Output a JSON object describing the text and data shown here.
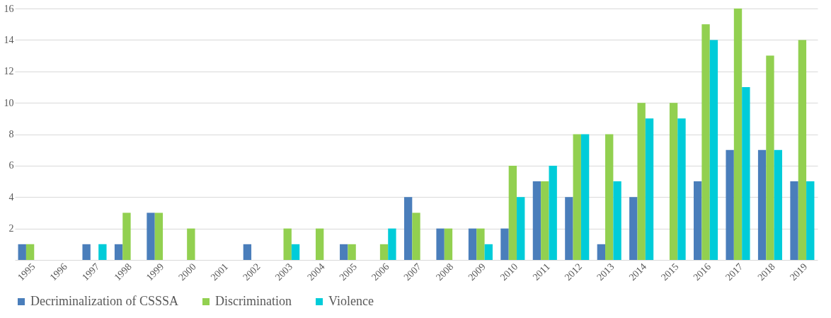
{
  "chart_data": {
    "type": "bar",
    "categories": [
      "1995",
      "1996",
      "1997",
      "1998",
      "1999",
      "2000",
      "2001",
      "2002",
      "2003",
      "2004",
      "2005",
      "2006",
      "2007",
      "2008",
      "2009",
      "2010",
      "2011",
      "2012",
      "2013",
      "2014",
      "2015",
      "2016",
      "2017",
      "2018",
      "2019"
    ],
    "series": [
      {
        "name": "Decriminalization of CSSSA",
        "color": "#4a7ebb",
        "values": [
          1,
          0,
          1,
          1,
          3,
          0,
          0,
          1,
          0,
          0,
          1,
          0,
          4,
          2,
          2,
          2,
          5,
          4,
          1,
          4,
          0,
          5,
          7,
          7,
          5
        ]
      },
      {
        "name": "Discrimination",
        "color": "#92d050",
        "values": [
          1,
          0,
          0,
          3,
          3,
          2,
          0,
          0,
          2,
          2,
          1,
          1,
          3,
          2,
          2,
          6,
          5,
          8,
          8,
          10,
          10,
          15,
          16,
          13,
          14
        ]
      },
      {
        "name": "Violence",
        "color": "#00ccd9",
        "values": [
          0,
          0,
          1,
          0,
          0,
          0,
          0,
          0,
          1,
          0,
          0,
          2,
          0,
          0,
          1,
          4,
          6,
          8,
          5,
          9,
          9,
          14,
          11,
          7,
          5
        ]
      }
    ],
    "ylim": [
      0,
      16
    ],
    "yticks": [
      2,
      4,
      6,
      8,
      10,
      12,
      14,
      16
    ],
    "grid": "y",
    "legend": "bottom"
  }
}
